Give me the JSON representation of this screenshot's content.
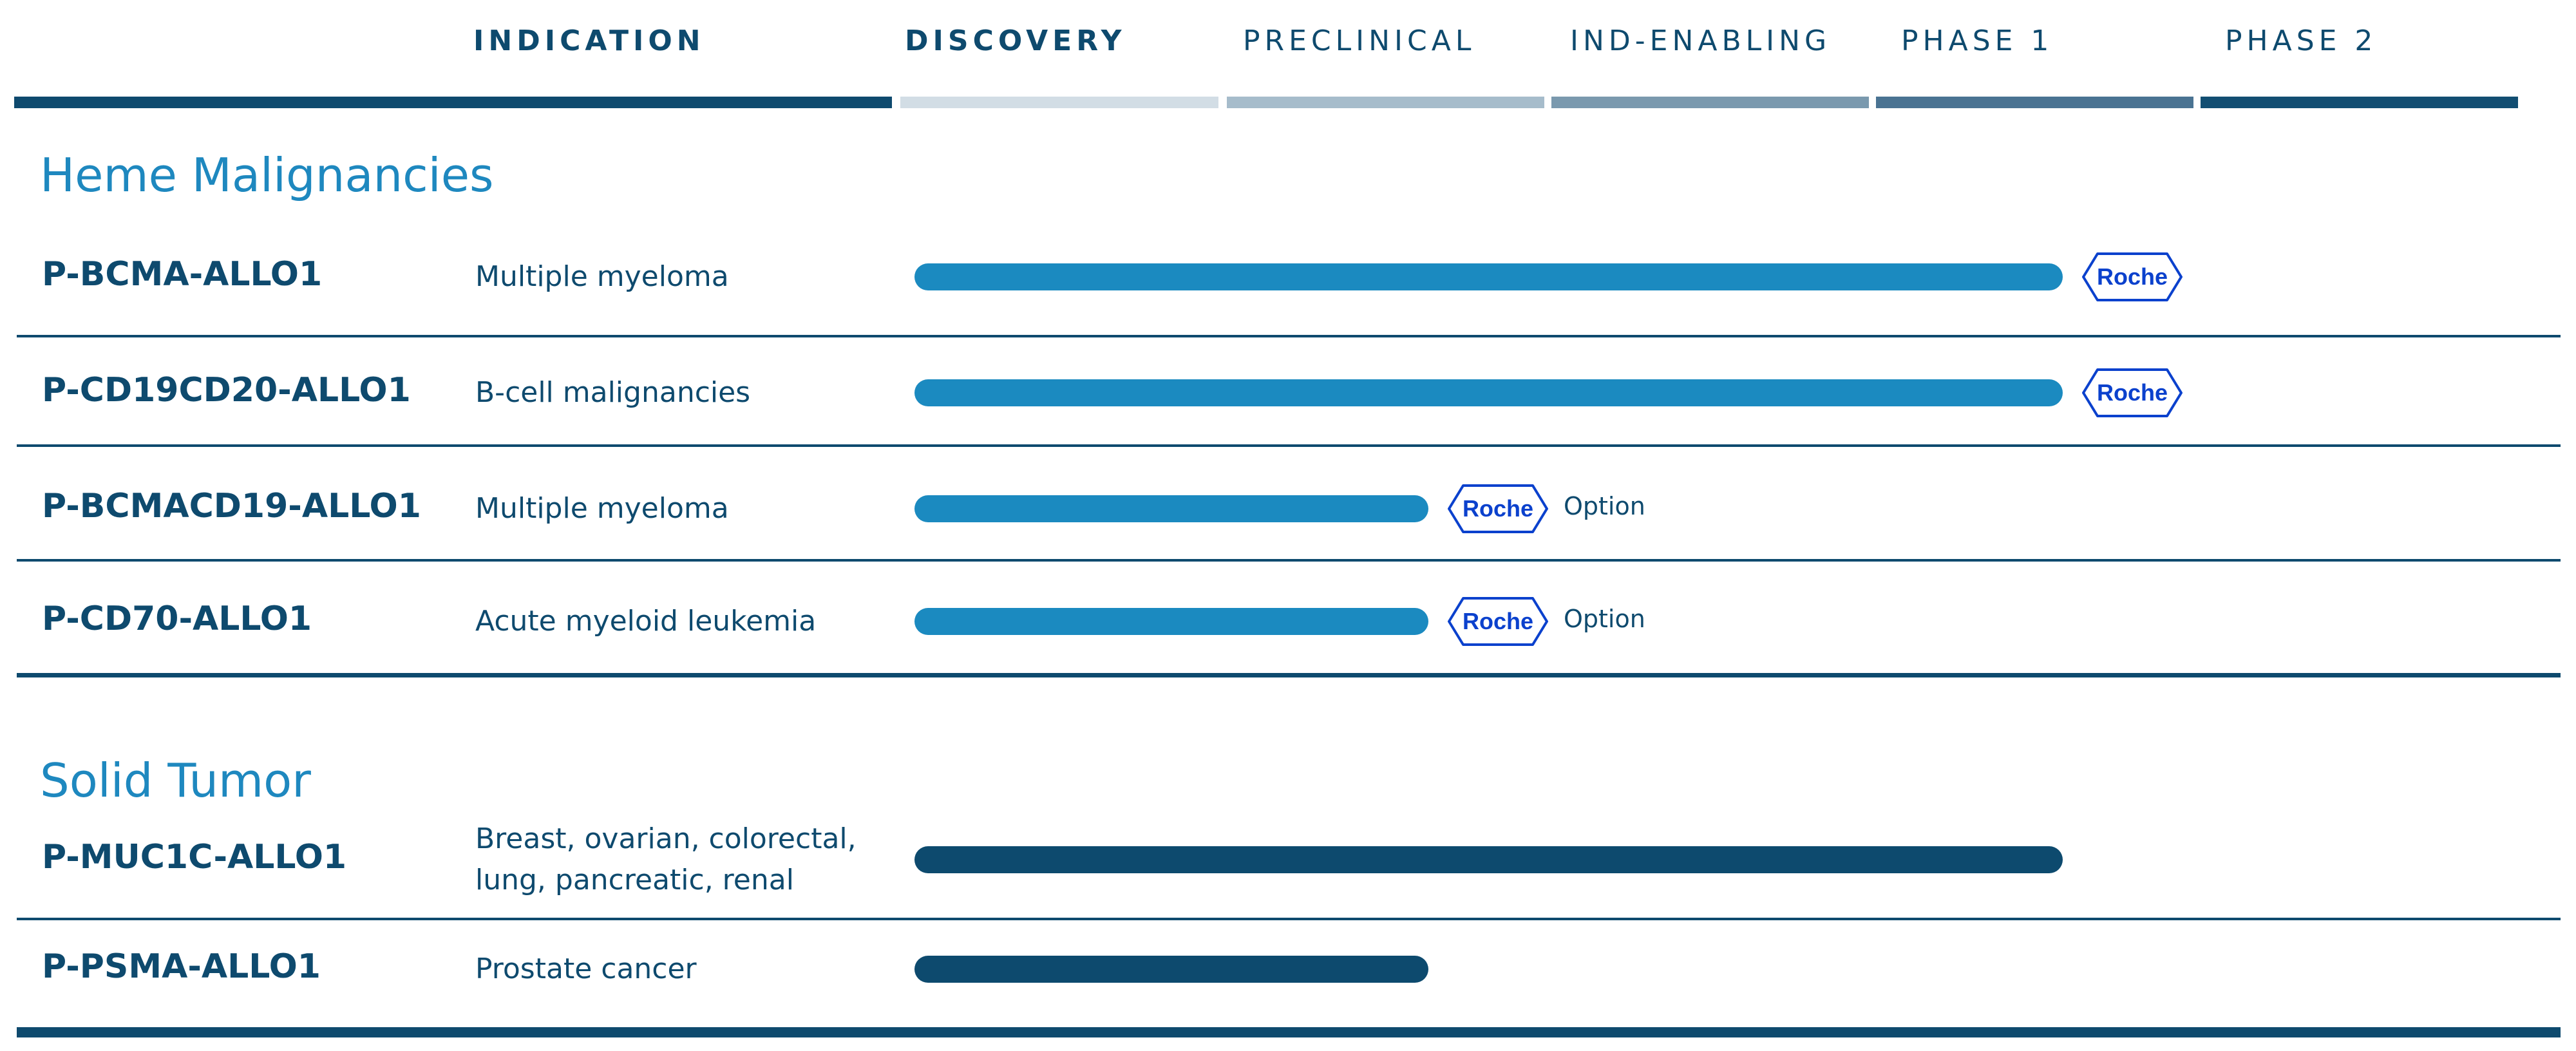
{
  "chart_data": {
    "type": "table",
    "columns": [
      "INDICATION",
      "DISCOVERY",
      "PRECLINICAL",
      "IND-ENABLING",
      "PHASE 1",
      "PHASE 2"
    ],
    "stages": [
      "DISCOVERY",
      "PRECLINICAL",
      "IND-ENABLING",
      "PHASE 1",
      "PHASE 2"
    ],
    "sections": [
      {
        "title": "Heme Malignancies",
        "programs": [
          {
            "name": "P-BCMA-ALLO1",
            "indication": [
              "Multiple myeloma"
            ],
            "progress_stages": 3.55,
            "partner": "Roche",
            "note": ""
          },
          {
            "name": "P-CD19CD20-ALLO1",
            "indication": [
              "B-cell malignancies"
            ],
            "progress_stages": 3.55,
            "partner": "Roche",
            "note": ""
          },
          {
            "name": "P-BCMACD19-ALLO1",
            "indication": [
              "Multiple myeloma"
            ],
            "progress_stages": 1.6,
            "partner": "Roche",
            "note": "Option"
          },
          {
            "name": "P-CD70-ALLO1",
            "indication": [
              "Acute myeloid leukemia"
            ],
            "progress_stages": 1.6,
            "partner": "Roche",
            "note": "Option"
          }
        ]
      },
      {
        "title": "Solid Tumor",
        "programs": [
          {
            "name": "P-MUC1C-ALLO1",
            "indication": [
              "Breast, ovarian, colorectal,",
              "lung, pancreatic, renal"
            ],
            "progress_stages": 3.55,
            "partner": "",
            "note": ""
          },
          {
            "name": "P-PSMA-ALLO1",
            "indication": [
              "Prostate cancer"
            ],
            "progress_stages": 1.6,
            "partner": "",
            "note": ""
          }
        ]
      }
    ]
  },
  "colors": {
    "heme_bar": "#1b8ac0",
    "solid_bar": "#0d4a6e",
    "header_text": "#0e4a6e",
    "section_title": "#1e88bf",
    "roche_blue": "#0b41cd",
    "stage_bar_colors": [
      "#d2dde5",
      "#a6bccb",
      "#7a99ae",
      "#4a7392",
      "#124e72"
    ],
    "indication_bar": "#0e4a6e"
  },
  "icons": {
    "partner_badge": "roche-hexagon-logo"
  }
}
